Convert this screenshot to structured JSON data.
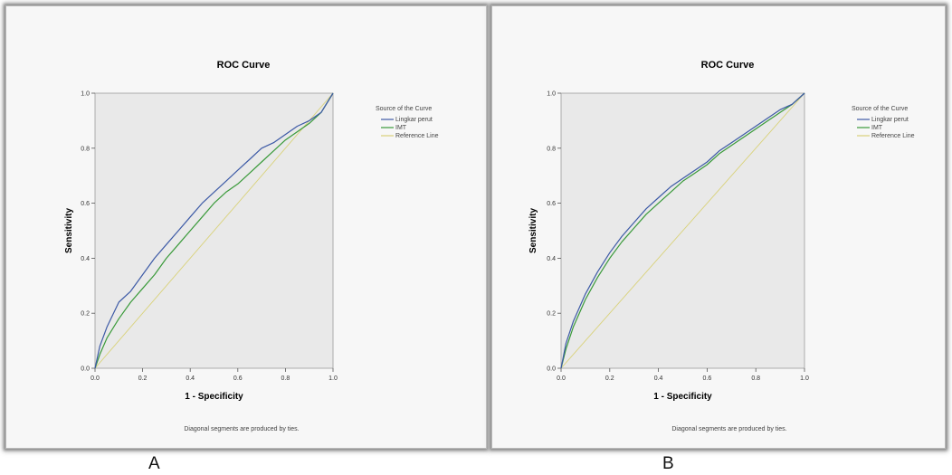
{
  "panels": [
    {
      "letter": "A",
      "footnote": "Diagonal segments are produced by ties.",
      "legend": {
        "title": "Source of the Curve",
        "items": [
          {
            "label": "Lingkar perut",
            "color": "#3d5aa6"
          },
          {
            "label": "IMT",
            "color": "#3a9a3a"
          },
          {
            "label": "Reference Line",
            "color": "#d9d27a"
          }
        ]
      }
    },
    {
      "letter": "B",
      "footnote": "Diagonal segments are produced by ties.",
      "legend": {
        "title": "Source of the Curve",
        "items": [
          {
            "label": "Lingkar perut",
            "color": "#3d5aa6"
          },
          {
            "label": "IMT",
            "color": "#3a9a3a"
          },
          {
            "label": "Reference Line",
            "color": "#d9d27a"
          }
        ]
      }
    }
  ],
  "chart_data": [
    {
      "type": "line",
      "title": "ROC Curve",
      "xlabel": "1 - Specificity",
      "ylabel": "Sensitivity",
      "xlim": [
        0,
        1
      ],
      "ylim": [
        0,
        1
      ],
      "xticks": [
        "0.0",
        "0.2",
        "0.4",
        "0.6",
        "0.8",
        "1.0"
      ],
      "yticks": [
        "0.0",
        "0.2",
        "0.4",
        "0.6",
        "0.8",
        "1.0"
      ],
      "legend_position": "right",
      "series": [
        {
          "name": "Lingkar perut",
          "color": "#3d5aa6",
          "x": [
            0,
            0.02,
            0.05,
            0.1,
            0.15,
            0.2,
            0.25,
            0.3,
            0.35,
            0.4,
            0.45,
            0.5,
            0.55,
            0.6,
            0.65,
            0.7,
            0.75,
            0.8,
            0.85,
            0.9,
            0.95,
            1.0
          ],
          "y": [
            0,
            0.08,
            0.15,
            0.24,
            0.28,
            0.34,
            0.4,
            0.45,
            0.5,
            0.55,
            0.6,
            0.64,
            0.68,
            0.72,
            0.76,
            0.8,
            0.82,
            0.85,
            0.88,
            0.9,
            0.93,
            1.0
          ]
        },
        {
          "name": "IMT",
          "color": "#3a9a3a",
          "x": [
            0,
            0.02,
            0.05,
            0.1,
            0.15,
            0.2,
            0.25,
            0.3,
            0.35,
            0.4,
            0.45,
            0.5,
            0.55,
            0.6,
            0.65,
            0.7,
            0.75,
            0.8,
            0.85,
            0.9,
            0.95,
            1.0
          ],
          "y": [
            0,
            0.05,
            0.11,
            0.18,
            0.24,
            0.29,
            0.34,
            0.4,
            0.45,
            0.5,
            0.55,
            0.6,
            0.64,
            0.67,
            0.71,
            0.75,
            0.79,
            0.83,
            0.86,
            0.89,
            0.93,
            1.0
          ]
        },
        {
          "name": "Reference Line",
          "color": "#d9d27a",
          "x": [
            0,
            1
          ],
          "y": [
            0,
            1
          ]
        }
      ]
    },
    {
      "type": "line",
      "title": "ROC Curve",
      "xlabel": "1 - Specificity",
      "ylabel": "Sensitivity",
      "xlim": [
        0,
        1
      ],
      "ylim": [
        0,
        1
      ],
      "xticks": [
        "0.0",
        "0.2",
        "0.4",
        "0.6",
        "0.8",
        "1.0"
      ],
      "yticks": [
        "0.0",
        "0.2",
        "0.4",
        "0.6",
        "0.8",
        "1.0"
      ],
      "legend_position": "right",
      "series": [
        {
          "name": "Lingkar perut",
          "color": "#3d5aa6",
          "x": [
            0,
            0.02,
            0.05,
            0.1,
            0.15,
            0.2,
            0.25,
            0.3,
            0.35,
            0.4,
            0.45,
            0.5,
            0.55,
            0.6,
            0.65,
            0.7,
            0.75,
            0.8,
            0.85,
            0.9,
            0.95,
            1.0
          ],
          "y": [
            0,
            0.09,
            0.17,
            0.27,
            0.35,
            0.42,
            0.48,
            0.53,
            0.58,
            0.62,
            0.66,
            0.69,
            0.72,
            0.75,
            0.79,
            0.82,
            0.85,
            0.88,
            0.91,
            0.94,
            0.96,
            1.0
          ]
        },
        {
          "name": "IMT",
          "color": "#3a9a3a",
          "x": [
            0,
            0.02,
            0.05,
            0.1,
            0.15,
            0.2,
            0.25,
            0.3,
            0.35,
            0.4,
            0.45,
            0.5,
            0.55,
            0.6,
            0.65,
            0.7,
            0.75,
            0.8,
            0.85,
            0.9,
            0.95,
            1.0
          ],
          "y": [
            0,
            0.07,
            0.15,
            0.25,
            0.33,
            0.4,
            0.46,
            0.51,
            0.56,
            0.6,
            0.64,
            0.68,
            0.71,
            0.74,
            0.78,
            0.81,
            0.84,
            0.87,
            0.9,
            0.93,
            0.96,
            1.0
          ]
        },
        {
          "name": "Reference Line",
          "color": "#d9d27a",
          "x": [
            0,
            1
          ],
          "y": [
            0,
            1
          ]
        }
      ]
    }
  ]
}
